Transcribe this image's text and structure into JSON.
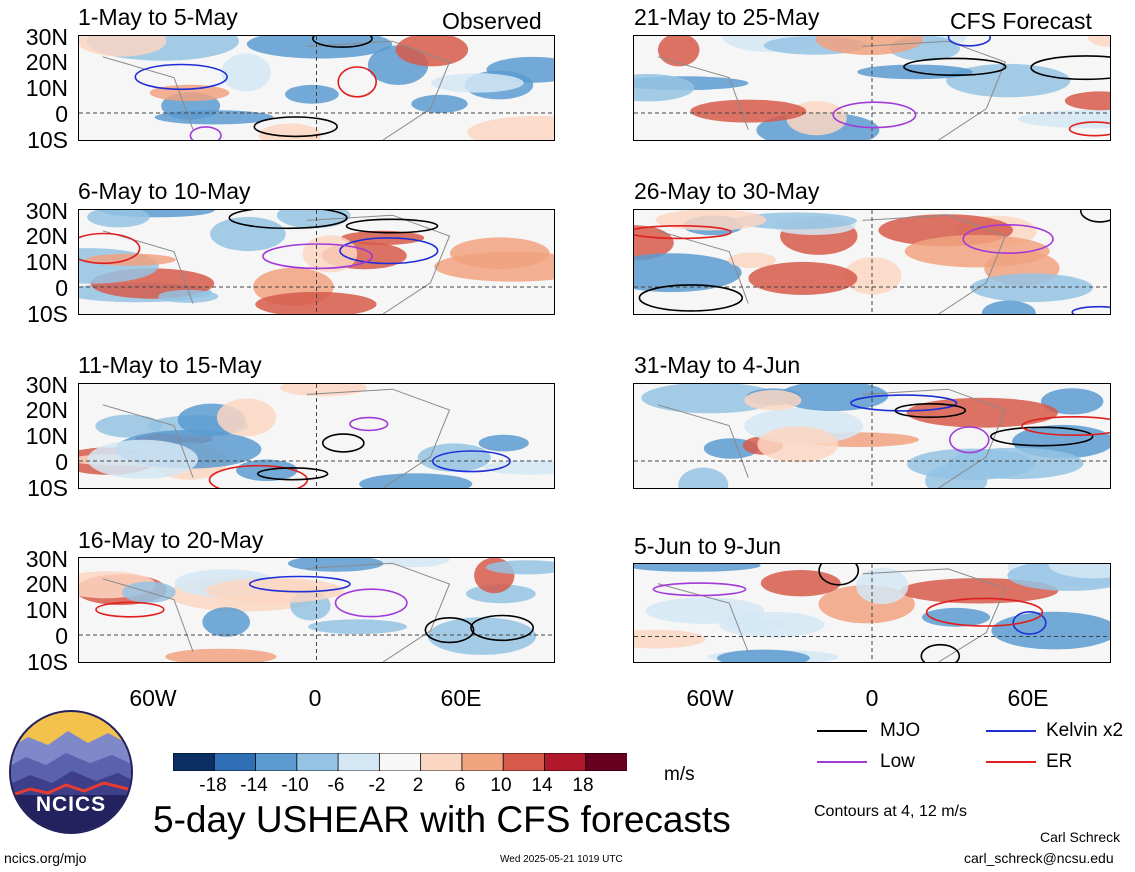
{
  "headers": {
    "left": "Observed",
    "right": "CFS Forecast"
  },
  "panels_left": [
    {
      "title": "1-May to 5-May"
    },
    {
      "title": "6-May to 10-May"
    },
    {
      "title": "11-May to 15-May"
    },
    {
      "title": "16-May to 20-May"
    }
  ],
  "panels_right": [
    {
      "title": "21-May to 25-May"
    },
    {
      "title": "26-May to 30-May"
    },
    {
      "title": "31-May to 4-Jun"
    },
    {
      "title": "5-Jun to 9-Jun"
    }
  ],
  "lat_labels": [
    "30N",
    "20N",
    "10N",
    "0",
    "10S"
  ],
  "lon_labels": [
    "60W",
    "0",
    "60E"
  ],
  "colorbar": {
    "ticks": [
      "-18",
      "-14",
      "-10",
      "-6",
      "-2",
      "2",
      "6",
      "10",
      "14",
      "18"
    ],
    "colors": [
      "#0b2e63",
      "#2f6fb5",
      "#5b9bd0",
      "#94c3e3",
      "#d4e7f5",
      "#f7f7f7",
      "#fbd6c2",
      "#f1a27f",
      "#d65b4a",
      "#b2182b",
      "#67001f"
    ],
    "unit": "m/s"
  },
  "legend": {
    "mjo": "MJO",
    "kelvin": "Kelvin x2",
    "low": "Low",
    "er": "ER",
    "mjo_color": "#000000",
    "kelvin_color": "#1f2fd6",
    "low_color": "#a23ad8",
    "er_color": "#e01e1e",
    "contours_note": "Contours at 4, 12 m/s"
  },
  "main_title": "5-day USHEAR with CFS forecasts",
  "logo_text": "NCICS",
  "footer": {
    "url": "ncics.org/mjo",
    "timestamp": "Wed 2025-05-21 1019 UTC",
    "author": "Carl Schreck",
    "email": "carl_schreck@ncsu.edu"
  }
}
